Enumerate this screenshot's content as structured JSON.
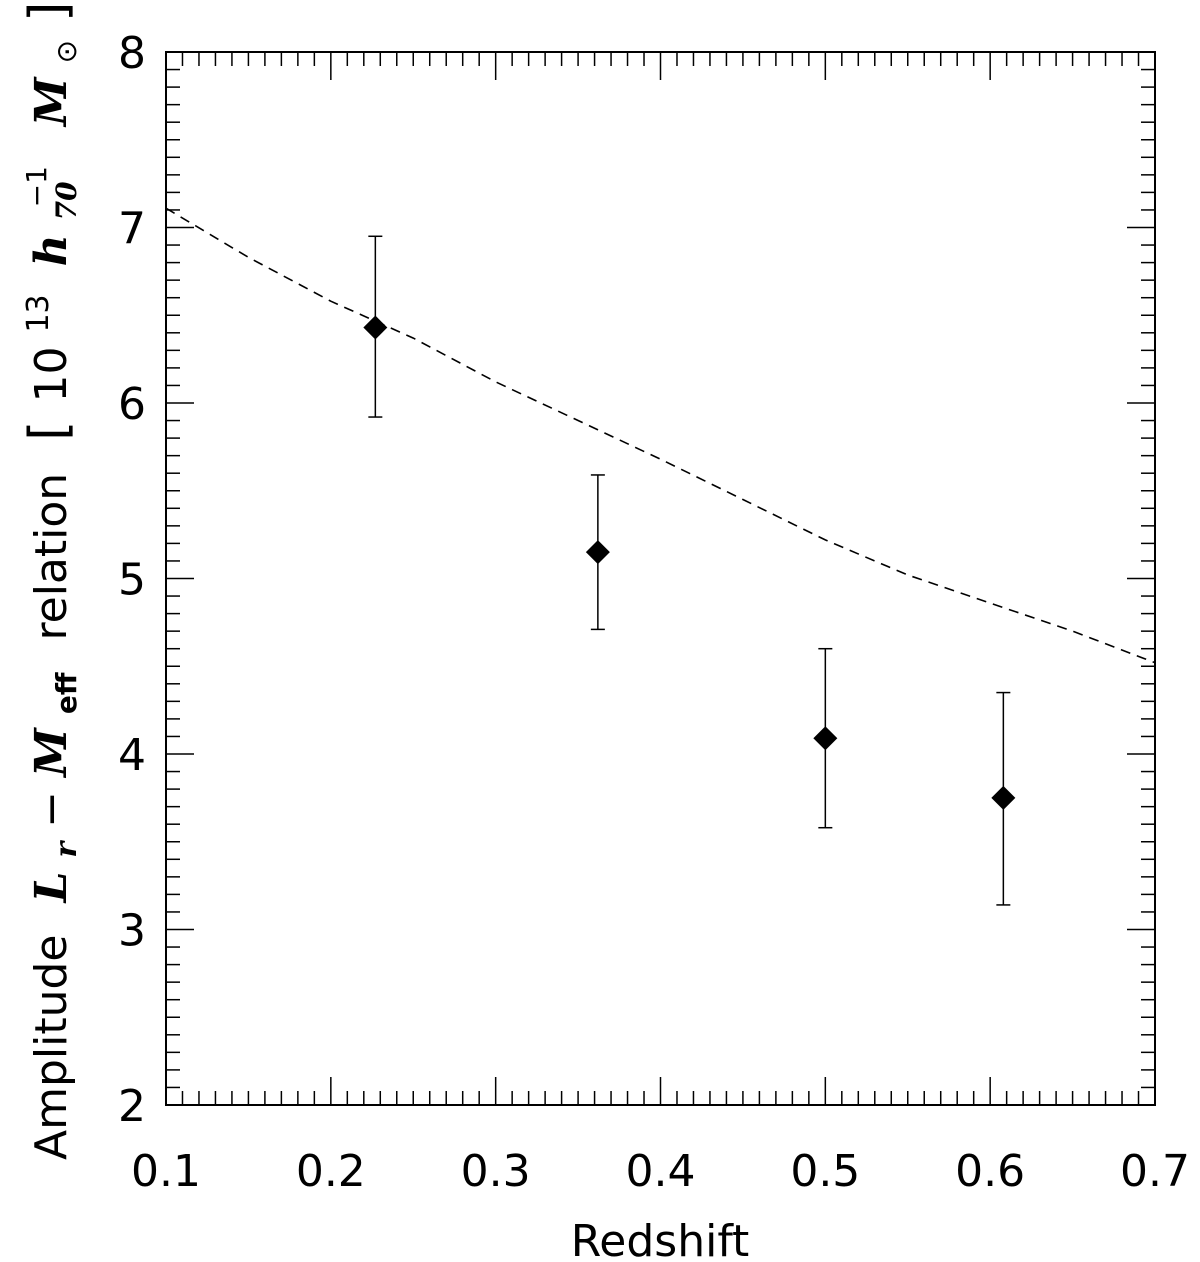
{
  "chart_data": {
    "type": "scatter",
    "xlabel": "Redshift",
    "ylabel": {
      "prefix": "Amplitude",
      "L": "L",
      "L_sub": "r",
      "dash": "−",
      "M": "M",
      "M_sub": "eff",
      "middle": "relation",
      "units_open": "[",
      "units_base": "10",
      "units_exp": "13",
      "units_h": "h",
      "units_h_sub": "70",
      "units_h_exp": "−1",
      "units_M": "M",
      "units_sun": "⊙",
      "units_close": "]"
    },
    "xlim": [
      0.1,
      0.7
    ],
    "ylim": [
      2,
      8
    ],
    "x_ticks": [
      "0.1",
      "0.2",
      "0.3",
      "0.4",
      "0.5",
      "0.6",
      "0.7"
    ],
    "y_ticks": [
      "2",
      "3",
      "4",
      "5",
      "6",
      "7",
      "8"
    ],
    "points": [
      {
        "x": 0.227,
        "y": 6.43,
        "yerr_low": 5.92,
        "yerr_high": 6.95
      },
      {
        "x": 0.362,
        "y": 5.15,
        "yerr_low": 4.71,
        "yerr_high": 5.59
      },
      {
        "x": 0.5,
        "y": 4.09,
        "yerr_low": 3.58,
        "yerr_high": 4.6
      },
      {
        "x": 0.608,
        "y": 3.75,
        "yerr_low": 3.14,
        "yerr_high": 4.35
      }
    ],
    "model_curve": {
      "style": "dashed",
      "x": [
        0.1,
        0.15,
        0.2,
        0.25,
        0.3,
        0.35,
        0.4,
        0.45,
        0.5,
        0.55,
        0.6,
        0.65,
        0.7
      ],
      "y": [
        7.11,
        6.83,
        6.58,
        6.37,
        6.12,
        5.9,
        5.68,
        5.45,
        5.22,
        5.02,
        4.86,
        4.7,
        4.52
      ]
    },
    "grid": false,
    "legend": "none"
  }
}
